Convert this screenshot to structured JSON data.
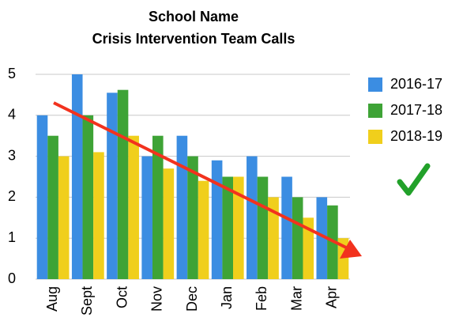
{
  "chart_data": {
    "type": "bar",
    "title": [
      "School Name",
      "Crisis Intervention Team Calls"
    ],
    "categories": [
      "Aug",
      "Sept",
      "Oct",
      "Nov",
      "Dec",
      "Jan",
      "Feb",
      "Mar",
      "Apr"
    ],
    "series": [
      {
        "name": "2016-17",
        "color": "#3b8de2",
        "values": [
          4.0,
          5.0,
          4.55,
          3.0,
          3.5,
          2.9,
          3.0,
          2.5,
          2.0
        ]
      },
      {
        "name": "2017-18",
        "color": "#3ea336",
        "values": [
          3.5,
          4.0,
          4.62,
          3.5,
          3.0,
          2.5,
          2.5,
          2.0,
          1.8
        ]
      },
      {
        "name": "2018-19",
        "color": "#f0cf1c",
        "values": [
          3.0,
          3.1,
          3.5,
          2.7,
          2.4,
          2.5,
          2.0,
          1.5,
          1.0
        ]
      }
    ],
    "ylim": [
      0,
      5
    ],
    "yticks": [
      0,
      1,
      2,
      3,
      4,
      5
    ],
    "grid": true,
    "legend": "right"
  }
}
